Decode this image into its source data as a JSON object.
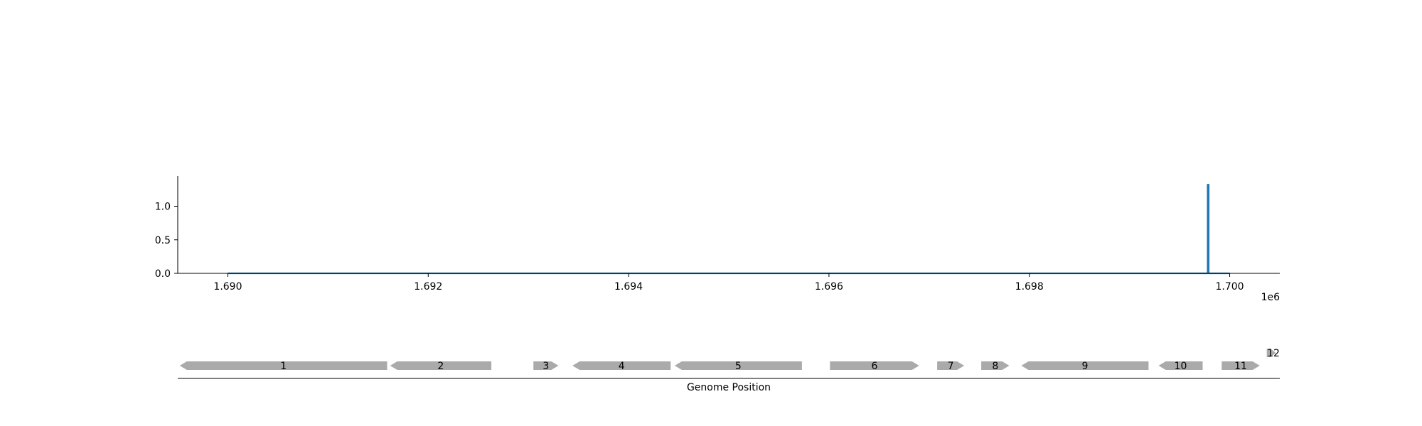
{
  "chart_data": [
    {
      "type": "line",
      "title": "",
      "xlabel": "",
      "ylabel": "",
      "x_offset_label": "1e6",
      "xlim": [
        1689500,
        1700500
      ],
      "ylim": [
        0,
        1.45
      ],
      "x_ticks": [
        1690000,
        1692000,
        1694000,
        1696000,
        1698000,
        1700000
      ],
      "x_tick_labels": [
        "1.690",
        "1.692",
        "1.694",
        "1.696",
        "1.698",
        "1.700"
      ],
      "y_ticks": [
        0.0,
        0.5,
        1.0
      ],
      "y_tick_labels": [
        "0.0",
        "0.5",
        "1.0"
      ],
      "grid": false,
      "series": [
        {
          "color": "#1f77b4",
          "x": [
            1690000,
            1699780,
            1699780,
            1699790,
            1699790,
            1700000
          ],
          "y": [
            0,
            0,
            1.32,
            1.32,
            0,
            0
          ]
        }
      ]
    },
    {
      "type": "gene_track",
      "xlabel": "Genome Position",
      "genes": [
        {
          "label": "1",
          "start": 1689520,
          "end": 1691590,
          "strand": "-"
        },
        {
          "label": "2",
          "start": 1691620,
          "end": 1692630,
          "strand": "-"
        },
        {
          "label": "3",
          "start": 1693050,
          "end": 1693300,
          "strand": "+"
        },
        {
          "label": "4",
          "start": 1693440,
          "end": 1694420,
          "strand": "-"
        },
        {
          "label": "5",
          "start": 1694460,
          "end": 1695730,
          "strand": "-"
        },
        {
          "label": "6",
          "start": 1696010,
          "end": 1696900,
          "strand": "+"
        },
        {
          "label": "7",
          "start": 1697080,
          "end": 1697350,
          "strand": "+"
        },
        {
          "label": "8",
          "start": 1697520,
          "end": 1697800,
          "strand": "+"
        },
        {
          "label": "9",
          "start": 1697920,
          "end": 1699190,
          "strand": "-"
        },
        {
          "label": "10",
          "start": 1699290,
          "end": 1699730,
          "strand": "-"
        },
        {
          "label": "11",
          "start": 1699920,
          "end": 1700300,
          "strand": "+"
        },
        {
          "label": "12",
          "start": 1700370,
          "end": 1700460,
          "strand": "+",
          "raised": true
        }
      ]
    }
  ],
  "colors": {
    "line": "#1f77b4",
    "gene": "#aaaaaa",
    "axis": "#000000"
  }
}
